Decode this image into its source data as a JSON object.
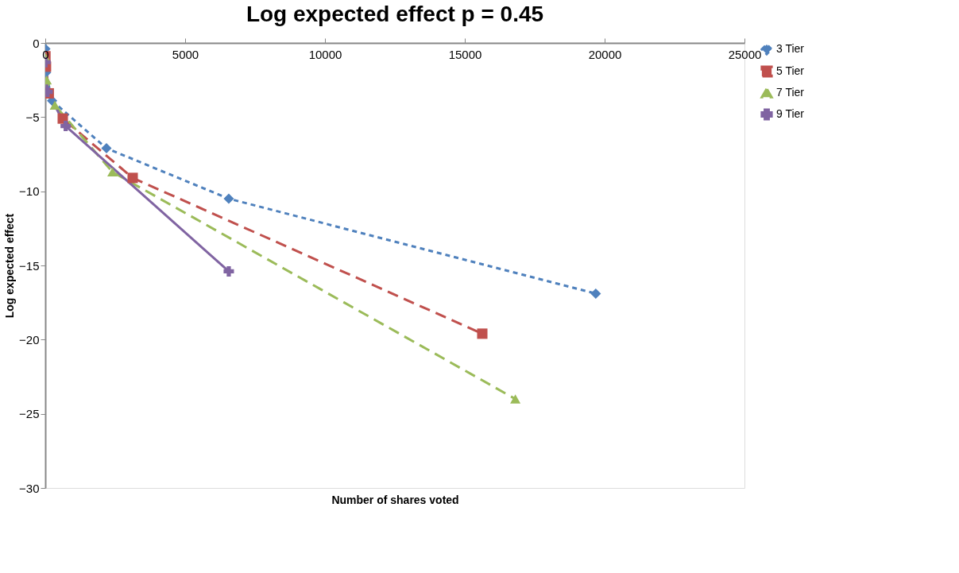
{
  "chart_data": {
    "type": "line",
    "title": "Log expected effect p = 0.45",
    "xlabel": "Number of shares voted",
    "ylabel": "Log expected effect",
    "xlim": [
      0,
      25000
    ],
    "xticks": [
      0,
      5000,
      10000,
      15000,
      20000,
      25000
    ],
    "ylim": [
      -30,
      0
    ],
    "yticks": [
      -30,
      -25,
      -20,
      -15,
      -10,
      -5,
      0
    ],
    "grid": false,
    "legend": "right",
    "series": [
      {
        "name": "3 Tier",
        "color": "#4f81bd",
        "marker": "diamond",
        "line_style": "dotted",
        "x": [
          3,
          27,
          243,
          729,
          2187,
          6561,
          19683
        ],
        "values": [
          -0.4,
          -2,
          -3.9,
          null,
          -7.1,
          -10.5,
          -16.9
        ]
      },
      {
        "name": "5 Tier",
        "color": "#c0504d",
        "marker": "square",
        "line_style": "dashed",
        "x": [
          5,
          25,
          125,
          625,
          3125,
          15625
        ],
        "values": [
          -0.9,
          -1.6,
          -3.4,
          -5.1,
          -9.1,
          -19.6
        ]
      },
      {
        "name": "7 Tier",
        "color": "#9bbb59",
        "marker": "triangle",
        "line_style": "dashed",
        "x": [
          7,
          49,
          343,
          2401,
          16807
        ],
        "values": [
          -1,
          -2.5,
          -4.2,
          -8.7,
          -24.0
        ]
      },
      {
        "name": "9 Tier",
        "color": "#8064a2",
        "marker": "cross",
        "line_style": "solid",
        "x": [
          9,
          81,
          729,
          6561
        ],
        "values": [
          -1.3,
          -3.3,
          -5.6,
          -15.4
        ]
      }
    ]
  }
}
